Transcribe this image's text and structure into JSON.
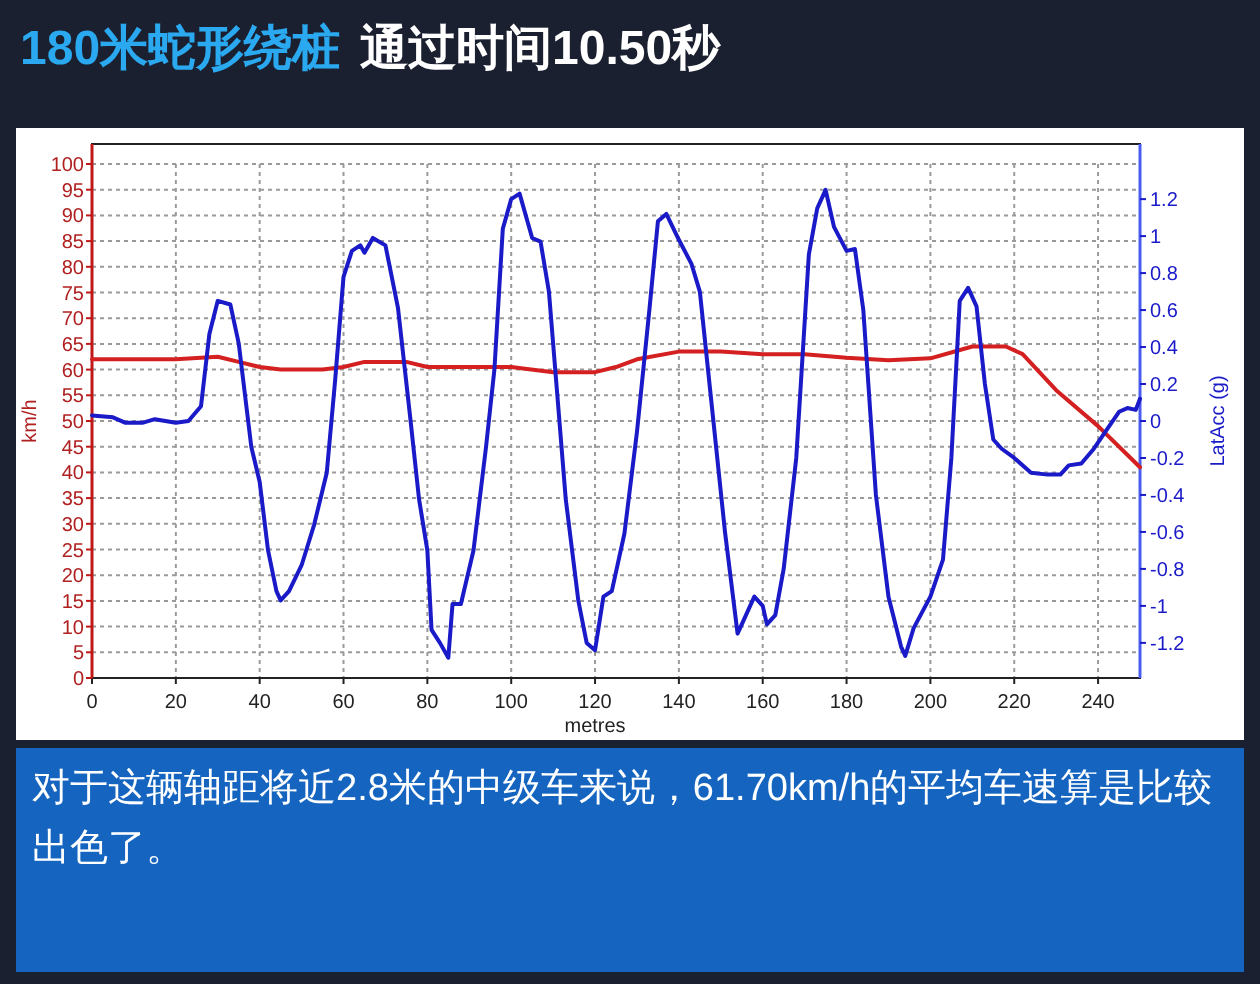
{
  "chart_data": {
    "type": "line",
    "title": "180米蛇形绕桩",
    "subtitle": "通过时间10.50秒",
    "xlabel": "metres",
    "ylabel": "km/h",
    "y2label": "LatAcc (g)",
    "annotations": [
      "对于这辆轴距将近2.8米的中级车来说，61.70km/h的平均车速算是比较出色了。"
    ],
    "xlim": [
      0,
      250
    ],
    "xticks": [
      0,
      20,
      40,
      60,
      80,
      100,
      120,
      140,
      160,
      180,
      200,
      220,
      240
    ],
    "ylim": [
      0,
      100
    ],
    "yticks": [
      0,
      5,
      10,
      15,
      20,
      25,
      30,
      35,
      40,
      45,
      50,
      55,
      60,
      65,
      70,
      75,
      80,
      85,
      90,
      95,
      100
    ],
    "y2lim": [
      -1.39,
      1.39
    ],
    "y2ticks": [
      -1.2,
      -1,
      -0.8,
      -0.6,
      -0.4,
      -0.2,
      0,
      0.2,
      0.4,
      0.6,
      0.8,
      1,
      1.2
    ],
    "grid": true,
    "series": [
      {
        "color": "#d42020",
        "x": [
          0,
          20,
          30,
          35,
          40,
          45,
          55,
          60,
          65,
          75,
          80,
          100,
          110,
          120,
          125,
          130,
          140,
          150,
          160,
          170,
          180,
          190,
          200,
          210,
          218,
          222,
          230,
          240,
          250
        ],
        "values": [
          62,
          62,
          62.5,
          61.5,
          60.5,
          60,
          60,
          60.5,
          61.5,
          61.5,
          60.5,
          60.5,
          59.5,
          59.5,
          60.5,
          62,
          63.5,
          63.5,
          63,
          63,
          62.3,
          61.8,
          62.2,
          64.5,
          64.5,
          63,
          56,
          49,
          41
        ]
      },
      {
        "color": "#1a1ac8",
        "axis": "y2",
        "x": [
          0,
          5,
          8,
          12,
          15,
          20,
          23,
          26,
          28,
          30,
          33,
          35,
          38,
          40,
          42,
          44,
          45,
          47,
          50,
          53,
          56,
          58,
          60,
          62,
          64,
          65,
          67,
          70,
          73,
          76,
          78,
          80,
          81,
          83,
          85,
          86,
          88,
          91,
          94,
          96,
          98,
          100,
          102,
          105,
          107,
          109,
          111,
          113,
          116,
          118,
          120,
          122,
          124,
          127,
          130,
          133,
          135,
          137,
          140,
          143,
          145,
          148,
          151,
          154,
          156,
          158,
          160,
          161,
          163,
          165,
          168,
          171,
          173,
          175,
          177,
          180,
          182,
          184,
          187,
          190,
          193,
          194,
          196,
          200,
          203,
          205,
          207,
          209,
          211,
          213,
          215,
          217,
          220,
          224,
          228,
          231,
          233,
          236,
          239,
          242,
          245,
          247,
          249,
          250
        ],
        "values": [
          0.03,
          0.02,
          -0.01,
          -0.01,
          0.01,
          -0.01,
          0,
          0.08,
          0.47,
          0.65,
          0.63,
          0.42,
          -0.14,
          -0.33,
          -0.7,
          -0.92,
          -0.97,
          -0.92,
          -0.78,
          -0.56,
          -0.28,
          0.22,
          0.78,
          0.92,
          0.95,
          0.91,
          0.99,
          0.95,
          0.61,
          0,
          -0.42,
          -0.7,
          -1.13,
          -1.2,
          -1.28,
          -0.99,
          -0.99,
          -0.7,
          -0.14,
          0.28,
          1.04,
          1.2,
          1.23,
          0.99,
          0.97,
          0.7,
          0.14,
          -0.42,
          -0.97,
          -1.2,
          -1.24,
          -0.95,
          -0.92,
          -0.61,
          -0.06,
          0.61,
          1.08,
          1.12,
          0.98,
          0.85,
          0.7,
          0.05,
          -0.6,
          -1.15,
          -1.05,
          -0.95,
          -1,
          -1.1,
          -1.05,
          -0.8,
          -0.2,
          0.9,
          1.15,
          1.25,
          1.05,
          0.92,
          0.93,
          0.6,
          -0.4,
          -0.95,
          -1.22,
          -1.27,
          -1.12,
          -0.95,
          -0.75,
          -0.2,
          0.65,
          0.72,
          0.62,
          0.2,
          -0.1,
          -0.15,
          -0.2,
          -0.28,
          -0.29,
          -0.29,
          -0.24,
          -0.23,
          -0.15,
          -0.05,
          0.05,
          0.07,
          0.06,
          0.12
        ]
      }
    ]
  }
}
